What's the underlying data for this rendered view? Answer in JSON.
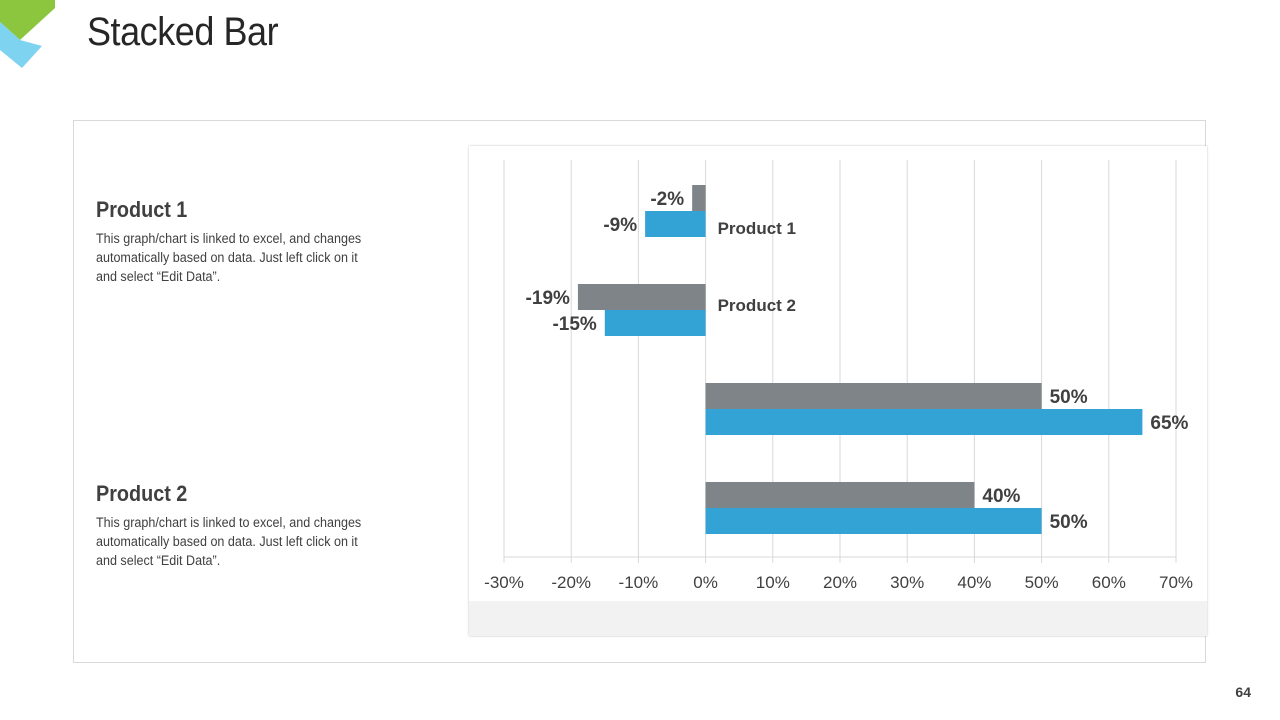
{
  "slide": {
    "title": "Stacked Bar",
    "page_number": "64"
  },
  "text_blocks": [
    {
      "heading": "Product 1",
      "description": "This graph/chart is linked to excel, and changes automatically  based on data. Just left click on it and select “Edit Data”."
    },
    {
      "heading": "Product 2",
      "description": "This graph/chart is linked to excel, and changes automatically  based on data. Just left click on it and select “Edit Data”."
    }
  ],
  "colors": {
    "product1": "#7f8489",
    "product2": "#33a3d5",
    "grid": "#d9d9d9",
    "label": "#404040",
    "logo_green": "#8cc63f",
    "logo_blue": "#7dd3f0"
  },
  "chart_data": {
    "type": "bar",
    "orientation": "horizontal",
    "x_ticks": [
      "-30%",
      "-20%",
      "-10%",
      "0%",
      "10%",
      "20%",
      "30%",
      "40%",
      "50%",
      "60%",
      "70%"
    ],
    "xlim": [
      -30,
      70
    ],
    "x_unit": "%",
    "grid": true,
    "legend": "inline",
    "series": [
      {
        "name": "Product 1",
        "values": [
          -2,
          -19,
          50,
          40
        ],
        "labels": [
          "-2%",
          "-19%",
          "50%",
          "40%"
        ]
      },
      {
        "name": "Product 2",
        "values": [
          -9,
          -15,
          65,
          50
        ],
        "labels": [
          "-9%",
          "-15%",
          "65%",
          "50%"
        ]
      }
    ]
  }
}
